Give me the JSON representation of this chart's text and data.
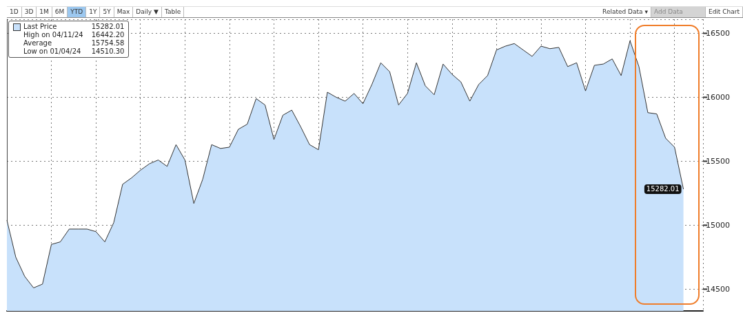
{
  "chart_data": {
    "type": "area",
    "categories": [
      null,
      null,
      null,
      null,
      null,
      null,
      null,
      null,
      null,
      null,
      null,
      null,
      null,
      null,
      null,
      null,
      null,
      null,
      null,
      null,
      null,
      null,
      null,
      null,
      null,
      null,
      null,
      null,
      null,
      null,
      null,
      null,
      null,
      null,
      null,
      null,
      null,
      null,
      null,
      null,
      null,
      null,
      null,
      null,
      null,
      null,
      null,
      null,
      null,
      null,
      null,
      null,
      null,
      null,
      null,
      null,
      null,
      null,
      null,
      null,
      null,
      null,
      null,
      null,
      null,
      null,
      null,
      null,
      null,
      null,
      null,
      null,
      null,
      null,
      null,
      null,
      null
    ],
    "series": [
      {
        "name": "Last Price",
        "color": "#c8e1fb",
        "values": [
          15040,
          14750,
          14600,
          14510.3,
          14540,
          14850,
          14870,
          14970,
          14970,
          14970,
          14950,
          14870,
          15020,
          15320,
          15370,
          15430,
          15480,
          15510,
          15460,
          15630,
          15510,
          15170,
          15360,
          15630,
          15600,
          15610,
          15750,
          15790,
          15990,
          15940,
          15670,
          15860,
          15900,
          15770,
          15630,
          15590,
          16040,
          16000,
          15970,
          16030,
          15950,
          16100,
          16270,
          16200,
          15940,
          16030,
          16270,
          16090,
          16020,
          16260,
          16180,
          16120,
          15970,
          16100,
          16170,
          16370,
          16400,
          16420,
          16370,
          16320,
          16400,
          16380,
          16390,
          16240,
          16270,
          16050,
          16250,
          16260,
          16300,
          16170,
          16442.2,
          16240,
          15880,
          15870,
          15680,
          15610,
          15282.01
        ],
        "value_labels": [
          null,
          null,
          null,
          null,
          null,
          null,
          null,
          null,
          null,
          null,
          null,
          null,
          null,
          null,
          null,
          null,
          null,
          null,
          null,
          null,
          null,
          null,
          null,
          null,
          null,
          null,
          null,
          null,
          null,
          null,
          null,
          null,
          null,
          null,
          null,
          null,
          null,
          null,
          null,
          null,
          null,
          null,
          null,
          null,
          null,
          null,
          null,
          null,
          null,
          null,
          null,
          null,
          null,
          null,
          null,
          null,
          null,
          null,
          null,
          null,
          null,
          null,
          null,
          null,
          null,
          null,
          null,
          null,
          null,
          null,
          null,
          null,
          null,
          null,
          null,
          null,
          "15282.01"
        ]
      }
    ],
    "ylim": [
      14330,
      16610
    ],
    "yticks": [
      14500,
      15000,
      15500,
      16000,
      16500
    ],
    "grid": true,
    "legend": "top left",
    "tick_labels": "y",
    "annotations": [
      "15282.01",
      "High on 04/11/24",
      "16442.20",
      "Average",
      "15754.58",
      "Low on 01/04/24",
      "14510.30",
      "1D",
      "3D",
      "1M",
      "6M",
      "YTD",
      "1Y",
      "5Y",
      "Max",
      "Daily ▼",
      "Table",
      "Related Data ▾",
      "Add Data",
      "Edit Chart"
    ]
  }
}
